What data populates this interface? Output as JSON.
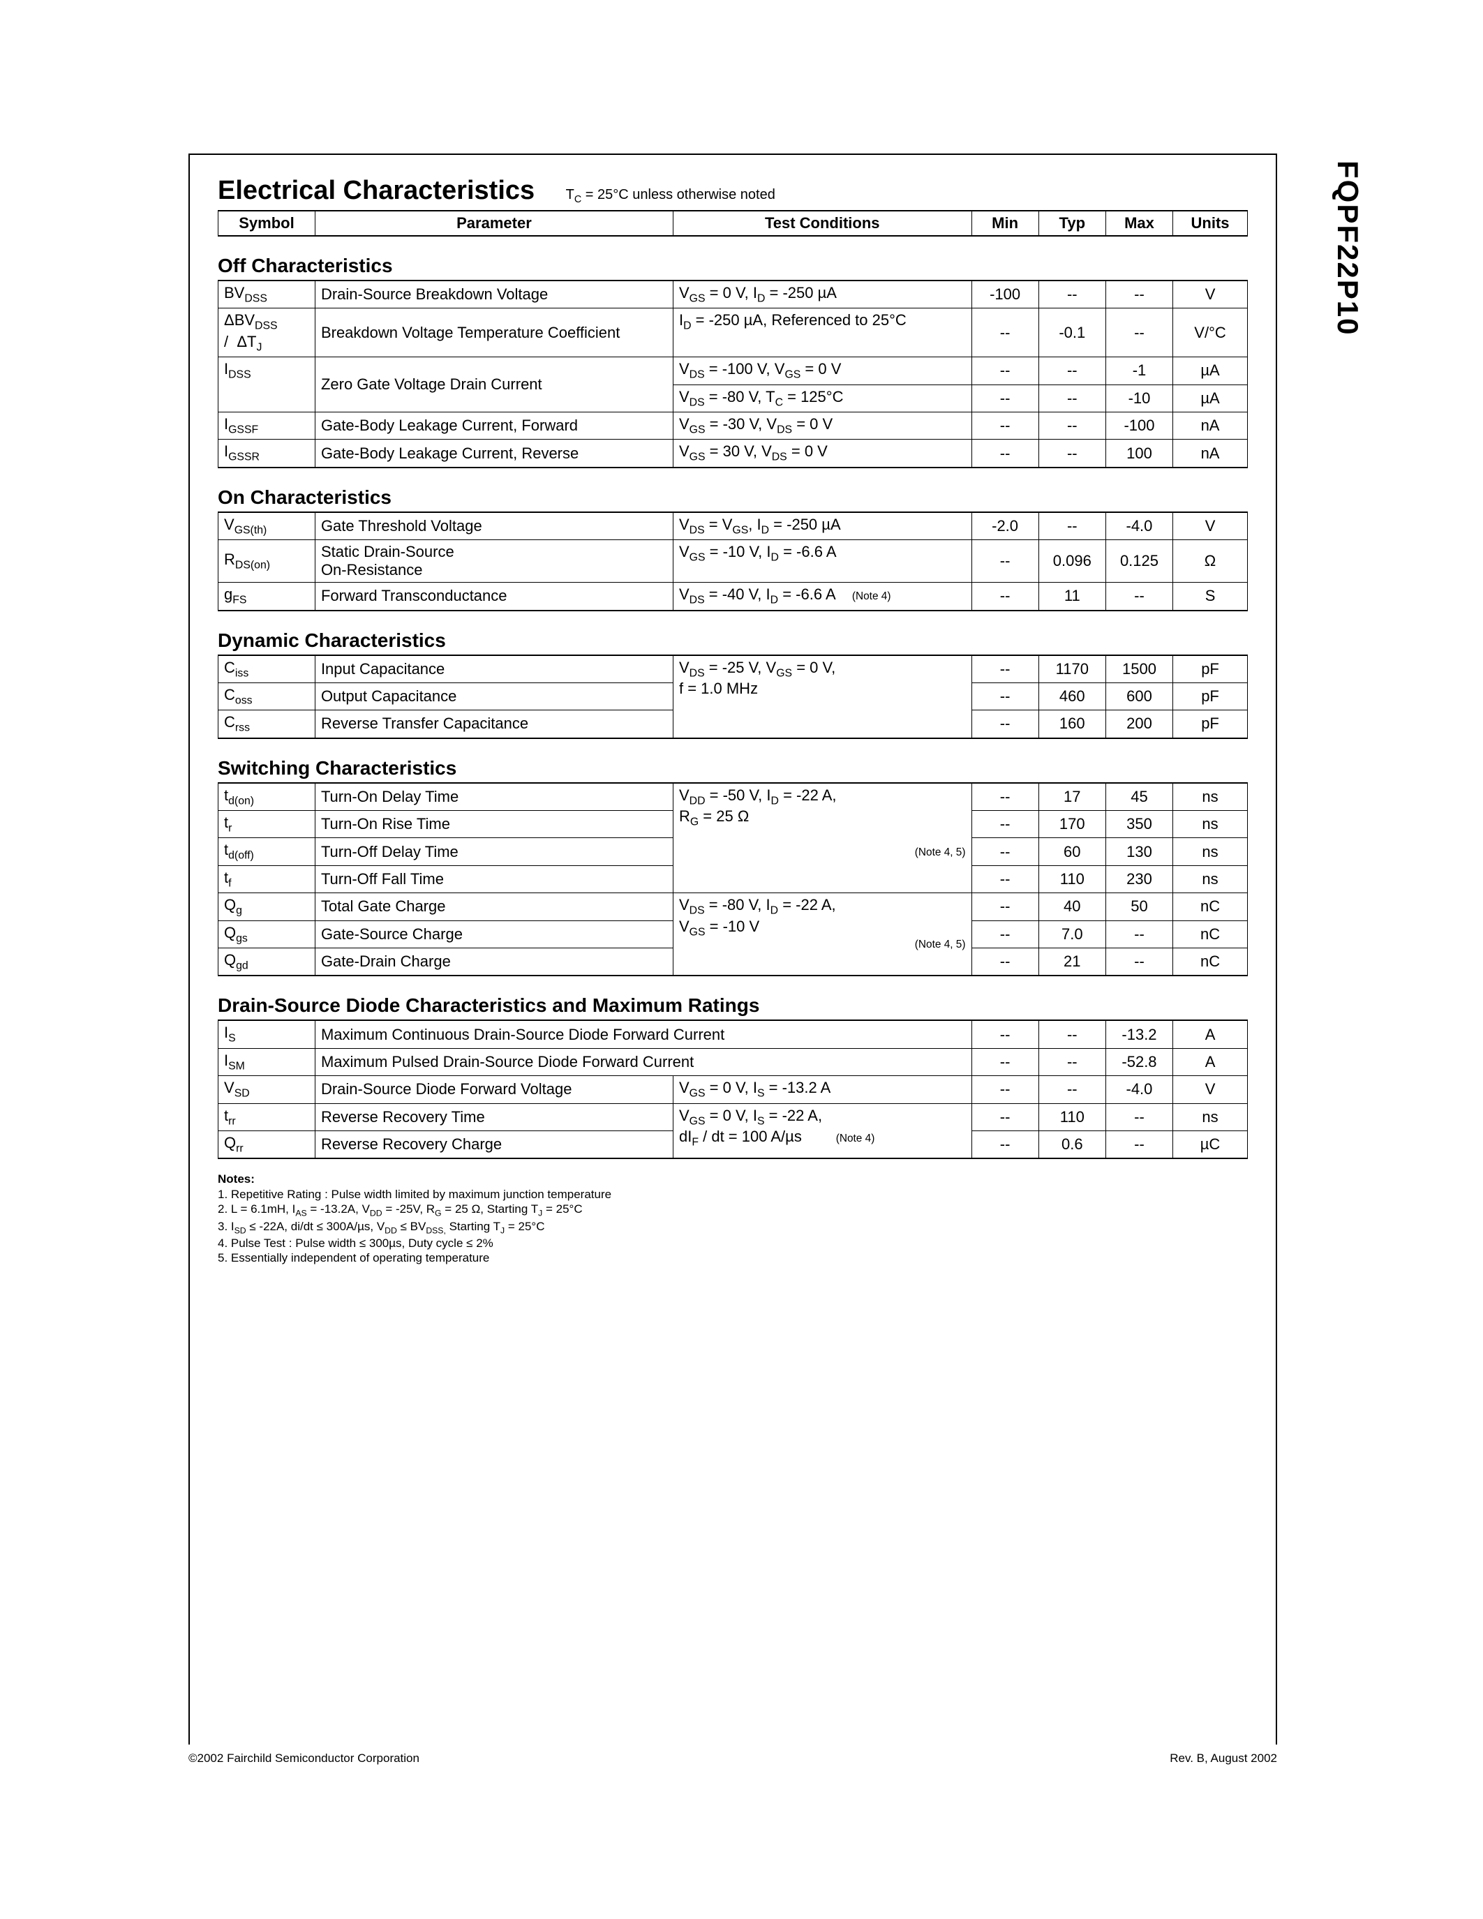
{
  "part_number": "FQPF22P10",
  "title": "Electrical Characteristics",
  "title_note_html": "T<sub>C</sub> = 25°C unless otherwise noted",
  "header": {
    "symbol": "Symbol",
    "parameter": "Parameter",
    "conditions": "Test Conditions",
    "min": "Min",
    "typ": "Typ",
    "max": "Max",
    "units": "Units"
  },
  "sections": [
    {
      "title": "Off Characteristics",
      "rows": [
        {
          "sym": "BV<sub>DSS</sub>",
          "param": "Drain-Source Breakdown Voltage",
          "cond": "V<sub>GS</sub> = 0 V, I<sub>D</sub> = -250 µA",
          "min": "-100",
          "typ": "--",
          "max": "--",
          "units": "V"
        },
        {
          "sym": "ΔBV<sub>DSS</sub><br>/&nbsp;&nbsp;ΔT<sub>J</sub>",
          "param": "Breakdown Voltage Temperature Coefficient",
          "cond": "I<sub>D</sub> = -250 µA, Referenced to 25°C",
          "min": "--",
          "typ": "-0.1",
          "max": "--",
          "units": "V/°C"
        },
        {
          "sym": "I<sub>DSS</sub>",
          "param": "Zero Gate Voltage Drain Current",
          "cond": "V<sub>DS</sub> = -100 V, V<sub>GS</sub> = 0 V",
          "min": "--",
          "typ": "--",
          "max": "-1",
          "units": "µA",
          "sym_rowspan": 2,
          "param_rowspan": 2
        },
        {
          "cond": "V<sub>DS</sub> = -80 V, T<sub>C</sub> = 125°C",
          "min": "--",
          "typ": "--",
          "max": "-10",
          "units": "µA"
        },
        {
          "sym": "I<sub>GSSF</sub>",
          "param": "Gate-Body Leakage Current, Forward",
          "cond": "V<sub>GS</sub> = -30 V, V<sub>DS</sub> = 0 V",
          "min": "--",
          "typ": "--",
          "max": "-100",
          "units": "nA"
        },
        {
          "sym": "I<sub>GSSR</sub>",
          "param": "Gate-Body Leakage Current, Reverse",
          "cond": "V<sub>GS</sub> = 30 V, V<sub>DS</sub> = 0 V",
          "min": "--",
          "typ": "--",
          "max": "100",
          "units": "nA"
        }
      ]
    },
    {
      "title": "On Characteristics",
      "rows": [
        {
          "sym": "V<sub>GS(th)</sub>",
          "param": "Gate Threshold Voltage",
          "cond": "V<sub>DS</sub> = V<sub>GS</sub>, I<sub>D</sub> = -250 µA",
          "min": "-2.0",
          "typ": "--",
          "max": "-4.0",
          "units": "V"
        },
        {
          "sym": "R<sub>DS(on)</sub>",
          "param": "Static Drain-Source<br>On-Resistance",
          "cond": "V<sub>GS</sub> = -10 V, I<sub>D</sub> = -6.6 A",
          "min": "--",
          "typ": "0.096",
          "max": "0.125",
          "units": "Ω"
        },
        {
          "sym": "g<sub>FS</sub>",
          "param": "Forward Transconductance",
          "cond": "V<sub>DS</sub> = -40 V, I<sub>D</sub> = -6.6 A &nbsp;&nbsp;&nbsp;<span class='note-ref'>(Note 4)</span>",
          "min": "--",
          "typ": "11",
          "max": "--",
          "units": "S"
        }
      ]
    },
    {
      "title": "Dynamic Characteristics",
      "rows": [
        {
          "sym": "C<sub>iss</sub>",
          "param": "Input Capacitance",
          "cond": "V<sub>DS</sub> = -25 V, V<sub>GS</sub> = 0 V,<br>f = 1.0 MHz",
          "cond_rowspan": 3,
          "min": "--",
          "typ": "1170",
          "max": "1500",
          "units": "pF"
        },
        {
          "sym": "C<sub>oss</sub>",
          "param": "Output Capacitance",
          "min": "--",
          "typ": "460",
          "max": "600",
          "units": "pF"
        },
        {
          "sym": "C<sub>rss</sub>",
          "param": "Reverse Transfer Capacitance",
          "min": "--",
          "typ": "160",
          "max": "200",
          "units": "pF"
        }
      ]
    },
    {
      "title": "Switching Characteristics",
      "rows": [
        {
          "sym": "t<sub>d(on)</sub>",
          "param": "Turn-On Delay Time",
          "cond": "V<sub>DD</sub> = -50 V, I<sub>D</sub> = -22 A,<br>R<sub>G</sub> = 25 Ω<br><br><span style='float:right' class='note-ref'>(Note 4, 5)</span>",
          "cond_rowspan": 4,
          "min": "--",
          "typ": "17",
          "max": "45",
          "units": "ns"
        },
        {
          "sym": "t<sub>r</sub>",
          "param": "Turn-On Rise Time",
          "min": "--",
          "typ": "170",
          "max": "350",
          "units": "ns"
        },
        {
          "sym": "t<sub>d(off)</sub>",
          "param": "Turn-Off Delay Time",
          "min": "--",
          "typ": "60",
          "max": "130",
          "units": "ns"
        },
        {
          "sym": "t<sub>f</sub>",
          "param": "Turn-Off Fall Time",
          "min": "--",
          "typ": "110",
          "max": "230",
          "units": "ns"
        },
        {
          "sym": "Q<sub>g</sub>",
          "param": "Total Gate Charge",
          "cond": "V<sub>DS</sub> = -80 V, I<sub>D</sub> = -22 A,<br>V<sub>GS</sub> = -10 V<br><span style='float:right' class='note-ref'>(Note 4, 5)</span>",
          "cond_rowspan": 3,
          "min": "--",
          "typ": "40",
          "max": "50",
          "units": "nC"
        },
        {
          "sym": "Q<sub>gs</sub>",
          "param": "Gate-Source Charge",
          "min": "--",
          "typ": "7.0",
          "max": "--",
          "units": "nC"
        },
        {
          "sym": "Q<sub>gd</sub>",
          "param": "Gate-Drain Charge",
          "min": "--",
          "typ": "21",
          "max": "--",
          "units": "nC"
        }
      ]
    },
    {
      "title": "Drain-Source Diode Characteristics and Maximum Ratings",
      "rows": [
        {
          "sym": "I<sub>S</sub>",
          "param": "Maximum Continuous Drain-Source Diode Forward Current",
          "param_colspan": 2,
          "min": "--",
          "typ": "--",
          "max": "-13.2",
          "units": "A"
        },
        {
          "sym": "I<sub>SM</sub>",
          "param": "Maximum Pulsed Drain-Source Diode Forward Current",
          "param_colspan": 2,
          "min": "--",
          "typ": "--",
          "max": "-52.8",
          "units": "A"
        },
        {
          "sym": "V<sub>SD</sub>",
          "param": "Drain-Source Diode Forward Voltage",
          "cond": "V<sub>GS</sub> = 0 V, I<sub>S</sub> = -13.2 A",
          "min": "--",
          "typ": "--",
          "max": "-4.0",
          "units": "V"
        },
        {
          "sym": "t<sub>rr</sub>",
          "param": "Reverse Recovery Time",
          "cond": "V<sub>GS</sub> = 0 V, I<sub>S</sub> = -22 A,<br>dI<sub>F</sub> / dt = 100 A/µs &nbsp;&nbsp;&nbsp;&nbsp;&nbsp;&nbsp;&nbsp;<span class='note-ref'>(Note 4)</span>",
          "cond_rowspan": 2,
          "min": "--",
          "typ": "110",
          "max": "--",
          "units": "ns"
        },
        {
          "sym": "Q<sub>rr</sub>",
          "param": "Reverse Recovery Charge",
          "min": "--",
          "typ": "0.6",
          "max": "--",
          "units": "µC"
        }
      ]
    }
  ],
  "notes": {
    "heading": "Notes:",
    "lines": [
      "1. Repetitive Rating : Pulse width limited by maximum junction temperature",
      "2. L = 6.1mH, I<sub>AS</sub> = -13.2A, V<sub>DD</sub> = -25V, R<sub>G</sub> = 25 Ω, Starting  T<sub>J</sub> = 25°C",
      "3. I<sub>SD</sub> ≤ -22A, di/dt ≤ 300A/µs, V<sub>DD</sub> ≤ BV<sub>DSS,</sub> Starting  T<sub>J</sub> = 25°C",
      "4. Pulse Test : Pulse width ≤ 300µs, Duty cycle ≤ 2%",
      "5. Essentially independent of operating temperature"
    ]
  },
  "footer": {
    "left": "©2002 Fairchild Semiconductor Corporation",
    "right": "Rev. B, August 2002"
  }
}
